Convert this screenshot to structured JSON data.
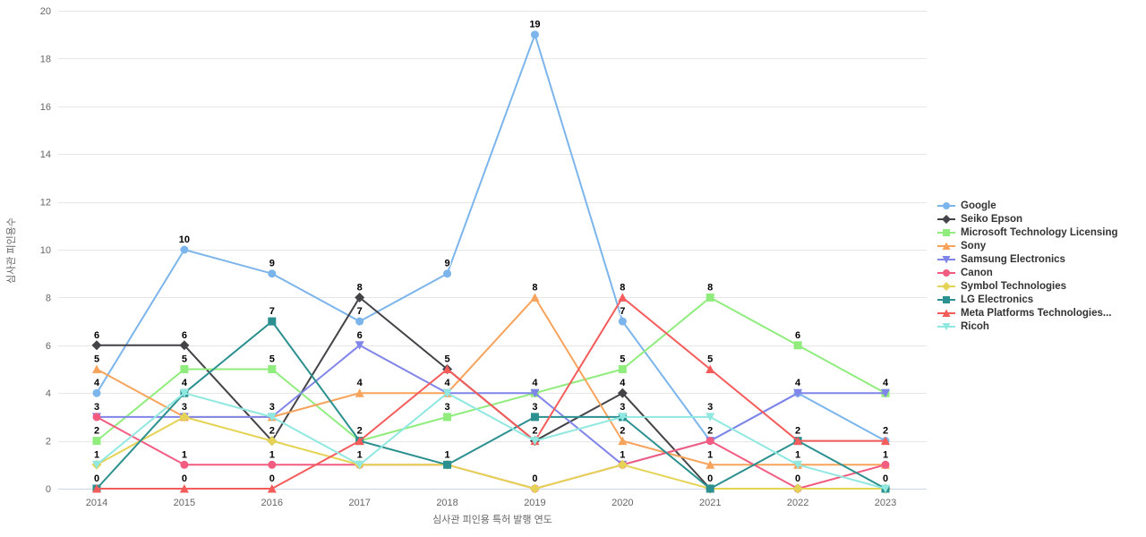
{
  "chart_data": {
    "type": "line",
    "title": "",
    "categories": [
      "2014",
      "2015",
      "2016",
      "2017",
      "2018",
      "2019",
      "2020",
      "2021",
      "2022",
      "2023"
    ],
    "xlabel": "심사관 피인용 특허 발행 연도",
    "ylabel": "심사관 피인용수",
    "ylim": [
      0,
      20
    ],
    "ytick_step": 2,
    "grid": true,
    "legend_position": "right",
    "colors": {
      "grid": "#e6e6e6",
      "axis_line": "#ccd6eb",
      "tick_label": "#666666",
      "data_label": "#000000",
      "legend_text": "#333333"
    },
    "series": [
      {
        "name": "Google",
        "color": "#7cb5ec",
        "marker": "circle",
        "values": [
          4,
          10,
          9,
          7,
          9,
          19,
          7,
          2,
          4,
          2
        ]
      },
      {
        "name": "Seiko Epson",
        "color": "#434348",
        "marker": "diamond",
        "values": [
          6,
          6,
          2,
          8,
          5,
          2,
          4,
          0,
          0,
          0
        ]
      },
      {
        "name": "Microsoft Technology Licensing",
        "color": "#90ed7d",
        "marker": "square",
        "values": [
          2,
          5,
          5,
          2,
          3,
          4,
          5,
          8,
          6,
          4
        ]
      },
      {
        "name": "Sony",
        "color": "#f7a35c",
        "marker": "triangle",
        "values": [
          5,
          3,
          3,
          4,
          4,
          8,
          2,
          1,
          1,
          1
        ]
      },
      {
        "name": "Samsung Electronics",
        "color": "#8085e9",
        "marker": "triangle-down",
        "values": [
          3,
          3,
          3,
          6,
          4,
          4,
          1,
          2,
          4,
          4
        ]
      },
      {
        "name": "Canon",
        "color": "#f15c80",
        "marker": "circle",
        "values": [
          3,
          1,
          1,
          1,
          1,
          0,
          1,
          2,
          0,
          1
        ]
      },
      {
        "name": "Symbol Technologies",
        "color": "#e4d354",
        "marker": "diamond",
        "values": [
          1,
          3,
          2,
          1,
          1,
          0,
          1,
          0,
          0,
          0
        ]
      },
      {
        "name": "LG Electronics",
        "color": "#2b908f",
        "marker": "square",
        "values": [
          0,
          4,
          7,
          2,
          1,
          3,
          3,
          0,
          2,
          0
        ]
      },
      {
        "name": "Meta Platforms Technologies...",
        "color": "#f45b5b",
        "marker": "triangle",
        "values": [
          0,
          0,
          0,
          2,
          5,
          2,
          8,
          5,
          2,
          2
        ]
      },
      {
        "name": "Ricoh",
        "color": "#91e8e1",
        "marker": "triangle-down",
        "values": [
          1,
          4,
          3,
          1,
          4,
          2,
          3,
          3,
          1,
          0
        ]
      }
    ]
  }
}
